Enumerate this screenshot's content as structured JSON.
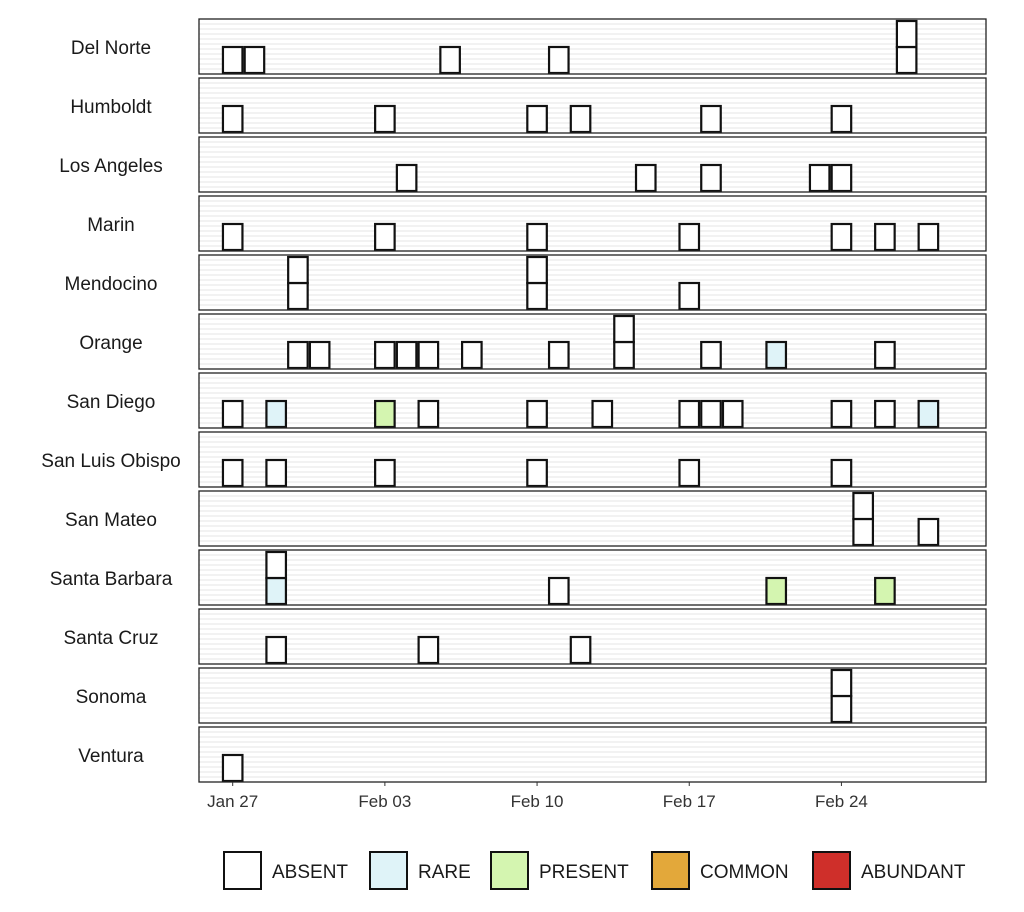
{
  "chart_data": {
    "type": "tile-timeline",
    "x_ticks": [
      {
        "label": "Jan 27",
        "day": 0
      },
      {
        "label": "Feb 03",
        "day": 7
      },
      {
        "label": "Feb 10",
        "day": 14
      },
      {
        "label": "Feb 17",
        "day": 21
      },
      {
        "label": "Feb 24",
        "day": 28
      }
    ],
    "x_range_days": [
      -1.55,
      34.65
    ],
    "categories": [
      "ABSENT",
      "RARE",
      "PRESENT",
      "COMMON",
      "ABUNDANT"
    ],
    "colors": {
      "ABSENT": "#ffffff",
      "RARE": "#dff3f8",
      "PRESENT": "#d4f5b0",
      "COMMON": "#e3a83a",
      "ABUNDANT": "#cf2f2a"
    },
    "counties": [
      {
        "name": "Del Norte",
        "observations": [
          {
            "date": "Jan 27",
            "day": 0,
            "status": [
              "ABSENT"
            ]
          },
          {
            "date": "Jan 28",
            "day": 1,
            "status": [
              "ABSENT"
            ]
          },
          {
            "date": "Feb 06",
            "day": 10,
            "status": [
              "ABSENT"
            ]
          },
          {
            "date": "Feb 11",
            "day": 15,
            "status": [
              "ABSENT"
            ]
          },
          {
            "date": "Feb 27",
            "day": 31,
            "status": [
              "ABSENT",
              "ABSENT"
            ]
          }
        ]
      },
      {
        "name": "Humboldt",
        "observations": [
          {
            "date": "Jan 27",
            "day": 0,
            "status": [
              "ABSENT"
            ]
          },
          {
            "date": "Feb 03",
            "day": 7,
            "status": [
              "ABSENT"
            ]
          },
          {
            "date": "Feb 10",
            "day": 14,
            "status": [
              "ABSENT"
            ]
          },
          {
            "date": "Feb 12",
            "day": 16,
            "status": [
              "ABSENT"
            ]
          },
          {
            "date": "Feb 18",
            "day": 22,
            "status": [
              "ABSENT"
            ]
          },
          {
            "date": "Feb 24",
            "day": 28,
            "status": [
              "ABSENT"
            ]
          }
        ]
      },
      {
        "name": "Los Angeles",
        "observations": [
          {
            "date": "Feb 04",
            "day": 8,
            "status": [
              "ABSENT"
            ]
          },
          {
            "date": "Feb 15",
            "day": 19,
            "status": [
              "ABSENT"
            ]
          },
          {
            "date": "Feb 18",
            "day": 22,
            "status": [
              "ABSENT"
            ]
          },
          {
            "date": "Feb 23",
            "day": 27,
            "status": [
              "ABSENT"
            ]
          },
          {
            "date": "Feb 24",
            "day": 28,
            "status": [
              "ABSENT"
            ]
          }
        ]
      },
      {
        "name": "Marin",
        "observations": [
          {
            "date": "Jan 27",
            "day": 0,
            "status": [
              "ABSENT"
            ]
          },
          {
            "date": "Feb 03",
            "day": 7,
            "status": [
              "ABSENT"
            ]
          },
          {
            "date": "Feb 10",
            "day": 14,
            "status": [
              "ABSENT"
            ]
          },
          {
            "date": "Feb 17",
            "day": 21,
            "status": [
              "ABSENT"
            ]
          },
          {
            "date": "Feb 24",
            "day": 28,
            "status": [
              "ABSENT"
            ]
          },
          {
            "date": "Feb 26",
            "day": 30,
            "status": [
              "ABSENT"
            ]
          },
          {
            "date": "Feb 28",
            "day": 32,
            "status": [
              "ABSENT"
            ]
          }
        ]
      },
      {
        "name": "Mendocino",
        "observations": [
          {
            "date": "Jan 30",
            "day": 3,
            "status": [
              "ABSENT",
              "ABSENT"
            ]
          },
          {
            "date": "Feb 10",
            "day": 14,
            "status": [
              "ABSENT",
              "ABSENT"
            ]
          },
          {
            "date": "Feb 17",
            "day": 21,
            "status": [
              "ABSENT"
            ]
          }
        ]
      },
      {
        "name": "Orange",
        "observations": [
          {
            "date": "Jan 30",
            "day": 3,
            "status": [
              "ABSENT"
            ]
          },
          {
            "date": "Jan 31",
            "day": 4,
            "status": [
              "ABSENT"
            ]
          },
          {
            "date": "Feb 03",
            "day": 7,
            "status": [
              "ABSENT"
            ]
          },
          {
            "date": "Feb 04",
            "day": 8,
            "status": [
              "ABSENT"
            ]
          },
          {
            "date": "Feb 05",
            "day": 9,
            "status": [
              "ABSENT"
            ]
          },
          {
            "date": "Feb 07",
            "day": 11,
            "status": [
              "ABSENT"
            ]
          },
          {
            "date": "Feb 11",
            "day": 15,
            "status": [
              "ABSENT"
            ]
          },
          {
            "date": "Feb 14",
            "day": 18,
            "status": [
              "ABSENT",
              "ABSENT"
            ]
          },
          {
            "date": "Feb 18",
            "day": 22,
            "status": [
              "ABSENT"
            ]
          },
          {
            "date": "Feb 21",
            "day": 25,
            "status": [
              "RARE"
            ]
          },
          {
            "date": "Feb 26",
            "day": 30,
            "status": [
              "ABSENT"
            ]
          }
        ]
      },
      {
        "name": "San Diego",
        "observations": [
          {
            "date": "Jan 27",
            "day": 0,
            "status": [
              "ABSENT"
            ]
          },
          {
            "date": "Jan 29",
            "day": 2,
            "status": [
              "RARE"
            ]
          },
          {
            "date": "Feb 03",
            "day": 7,
            "status": [
              "PRESENT"
            ]
          },
          {
            "date": "Feb 05",
            "day": 9,
            "status": [
              "ABSENT"
            ]
          },
          {
            "date": "Feb 10",
            "day": 14,
            "status": [
              "ABSENT"
            ]
          },
          {
            "date": "Feb 13",
            "day": 17,
            "status": [
              "ABSENT"
            ]
          },
          {
            "date": "Feb 17",
            "day": 21,
            "status": [
              "ABSENT"
            ]
          },
          {
            "date": "Feb 18",
            "day": 22,
            "status": [
              "ABSENT"
            ]
          },
          {
            "date": "Feb 19",
            "day": 23,
            "status": [
              "ABSENT"
            ]
          },
          {
            "date": "Feb 24",
            "day": 28,
            "status": [
              "ABSENT"
            ]
          },
          {
            "date": "Feb 26",
            "day": 30,
            "status": [
              "ABSENT"
            ]
          },
          {
            "date": "Feb 28",
            "day": 32,
            "status": [
              "RARE"
            ]
          }
        ]
      },
      {
        "name": "San Luis Obispo",
        "observations": [
          {
            "date": "Jan 27",
            "day": 0,
            "status": [
              "ABSENT"
            ]
          },
          {
            "date": "Jan 29",
            "day": 2,
            "status": [
              "ABSENT"
            ]
          },
          {
            "date": "Feb 03",
            "day": 7,
            "status": [
              "ABSENT"
            ]
          },
          {
            "date": "Feb 10",
            "day": 14,
            "status": [
              "ABSENT"
            ]
          },
          {
            "date": "Feb 17",
            "day": 21,
            "status": [
              "ABSENT"
            ]
          },
          {
            "date": "Feb 24",
            "day": 28,
            "status": [
              "ABSENT"
            ]
          }
        ]
      },
      {
        "name": "San Mateo",
        "observations": [
          {
            "date": "Feb 25",
            "day": 29,
            "status": [
              "ABSENT",
              "ABSENT"
            ]
          },
          {
            "date": "Feb 28",
            "day": 32,
            "status": [
              "ABSENT"
            ]
          }
        ]
      },
      {
        "name": "Santa Barbara",
        "observations": [
          {
            "date": "Jan 29",
            "day": 2,
            "status": [
              "RARE",
              "ABSENT"
            ]
          },
          {
            "date": "Feb 11",
            "day": 15,
            "status": [
              "ABSENT"
            ]
          },
          {
            "date": "Feb 21",
            "day": 25,
            "status": [
              "PRESENT"
            ]
          },
          {
            "date": "Feb 26",
            "day": 30,
            "status": [
              "PRESENT"
            ]
          }
        ]
      },
      {
        "name": "Santa Cruz",
        "observations": [
          {
            "date": "Jan 29",
            "day": 2,
            "status": [
              "ABSENT"
            ]
          },
          {
            "date": "Feb 05",
            "day": 9,
            "status": [
              "ABSENT"
            ]
          },
          {
            "date": "Feb 12",
            "day": 16,
            "status": [
              "ABSENT"
            ]
          }
        ]
      },
      {
        "name": "Sonoma",
        "observations": [
          {
            "date": "Feb 24",
            "day": 28,
            "status": [
              "ABSENT",
              "ABSENT"
            ]
          }
        ]
      },
      {
        "name": "Ventura",
        "observations": [
          {
            "date": "Jan 27",
            "day": 0,
            "status": [
              "ABSENT"
            ]
          }
        ]
      }
    ],
    "legend": {
      "position": "bottom",
      "items": [
        "ABSENT",
        "RARE",
        "PRESENT",
        "COMMON",
        "ABUNDANT"
      ]
    },
    "grid": true,
    "xlabel": "",
    "ylabel": "",
    "title": ""
  }
}
